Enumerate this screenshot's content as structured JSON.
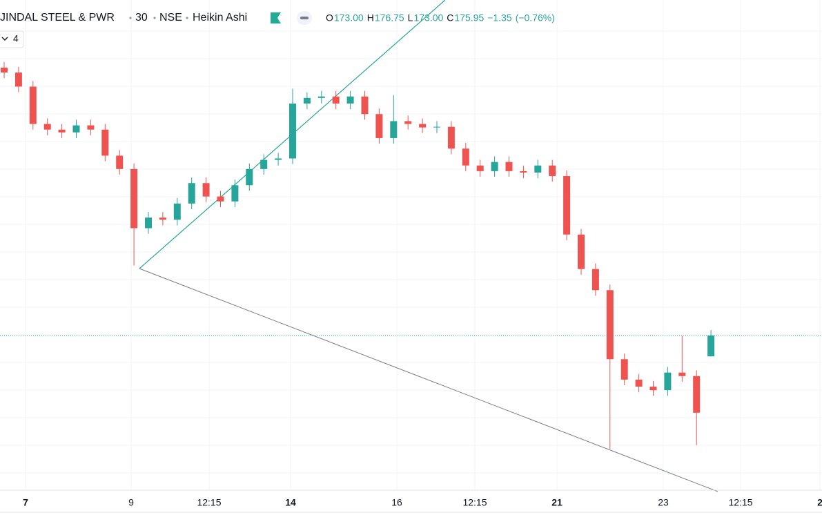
{
  "header": {
    "symbol": "JINDAL STEEL & PWR",
    "interval": "30",
    "exchange": "NSE",
    "chart_style": "Heikin Ashi",
    "ohlc": [
      {
        "label": "O",
        "value": "173.00"
      },
      {
        "label": "H",
        "value": "176.75"
      },
      {
        "label": "L",
        "value": "173.00"
      },
      {
        "label": "C",
        "value": "175.95"
      }
    ],
    "change": "−1.35",
    "change_pct": "(−0.76%)",
    "indicator_count": "4"
  },
  "chart_data": {
    "type": "candlestick",
    "up_color": "#26a69a",
    "down_color": "#ef5350",
    "ylim": [
      154.0,
      223.6
    ],
    "x_labels": [
      "7",
      "9",
      "12:15",
      "14",
      "16",
      "12:15",
      "21",
      "23",
      "12:15",
      "2"
    ],
    "open": [
      214.0,
      213.3,
      211.3,
      206.0,
      205.2,
      204.8,
      205.8,
      205.2,
      201.5,
      199.6,
      191.2,
      192.7,
      192.4,
      194.7,
      197.6,
      195.7,
      195.0,
      197.3,
      199.6,
      200.9,
      201.1,
      208.9,
      209.7,
      209.9,
      208.9,
      209.9,
      207.4,
      204.0,
      206.4,
      206.0,
      205.5,
      205.6,
      202.5,
      200.1,
      199.3,
      200.6,
      199.3,
      199.1,
      200.1,
      198.6,
      190.3,
      185.4,
      182.4,
      172.6,
      169.7,
      168.7,
      168.2,
      170.7,
      170.2,
      173.0
    ],
    "high": [
      214.8,
      214.1,
      212.1,
      206.8,
      206.0,
      206.6,
      206.6,
      206.0,
      202.3,
      200.4,
      193.5,
      193.5,
      195.5,
      198.4,
      198.4,
      196.5,
      198.1,
      200.4,
      201.7,
      201.9,
      211.0,
      210.5,
      210.7,
      210.7,
      210.7,
      210.7,
      208.2,
      210.1,
      207.2,
      206.8,
      206.4,
      206.4,
      203.3,
      200.9,
      201.4,
      201.4,
      200.1,
      200.9,
      200.9,
      199.4,
      191.1,
      186.2,
      183.2,
      173.4,
      170.5,
      169.5,
      171.5,
      175.9,
      171.0,
      176.75
    ],
    "low": [
      212.5,
      210.5,
      205.2,
      204.4,
      204.0,
      204.0,
      204.4,
      200.7,
      198.8,
      185.9,
      190.4,
      191.6,
      191.6,
      193.9,
      194.9,
      194.2,
      194.2,
      196.5,
      198.8,
      200.1,
      200.3,
      208.1,
      208.9,
      208.1,
      208.1,
      206.6,
      203.2,
      203.2,
      205.2,
      204.7,
      204.7,
      201.7,
      199.3,
      198.5,
      198.5,
      198.5,
      198.3,
      198.3,
      197.8,
      189.5,
      184.6,
      181.6,
      159.9,
      168.9,
      167.9,
      167.4,
      167.4,
      169.4,
      160.4,
      173.0
    ],
    "close": [
      213.3,
      211.3,
      206.0,
      205.2,
      204.8,
      205.8,
      205.2,
      201.5,
      199.6,
      191.2,
      192.7,
      192.4,
      194.7,
      197.6,
      195.7,
      195.0,
      197.3,
      199.6,
      200.9,
      201.1,
      208.9,
      209.7,
      209.9,
      208.9,
      209.9,
      207.4,
      204.0,
      206.4,
      206.0,
      205.5,
      205.6,
      202.5,
      200.1,
      199.3,
      200.6,
      199.3,
      199.1,
      200.1,
      198.6,
      190.3,
      185.4,
      182.4,
      172.6,
      169.7,
      168.7,
      168.2,
      170.7,
      170.2,
      165.0,
      175.95
    ]
  }
}
